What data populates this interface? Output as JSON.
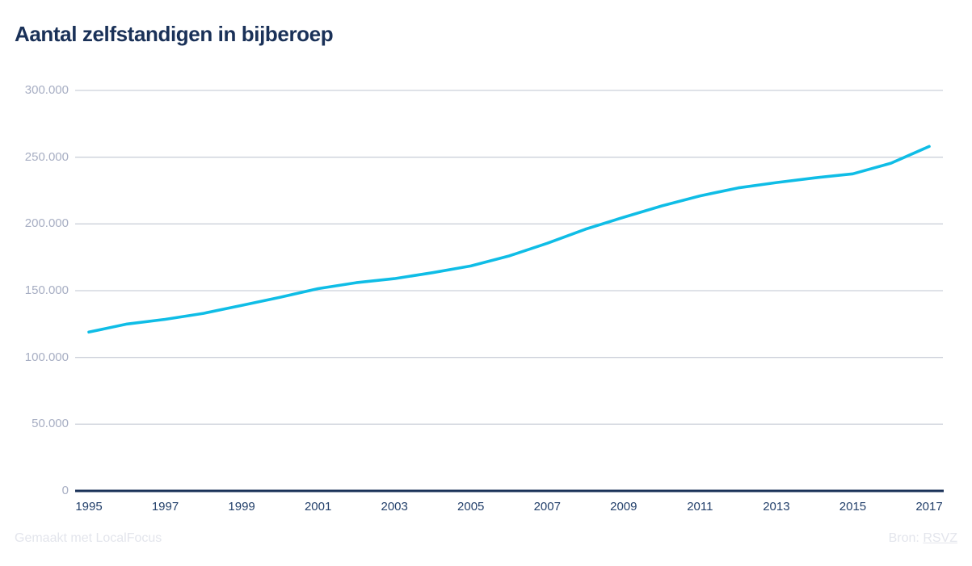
{
  "title": "Aantal zelfstandigen in bijberoep",
  "footer": {
    "credit": "Gemaakt met LocalFocus",
    "source_label": "Bron:",
    "source_link": "RSVZ"
  },
  "colors": {
    "title": "#1a3158",
    "line": "#0fbde6",
    "grid": "#ccd0da",
    "axis_baseline": "#1a3158",
    "y_tick_label": "#a7aec3",
    "x_tick_label": "#23406b",
    "footer_text": "#e3e5ec"
  },
  "chart_data": {
    "type": "line",
    "title": "Aantal zelfstandigen in bijberoep",
    "xlabel": "",
    "ylabel": "",
    "ylim": [
      0,
      300000
    ],
    "xlim": [
      1995,
      2017
    ],
    "grid": "horizontal",
    "legend": "none",
    "x": [
      1995,
      1996,
      1997,
      1998,
      1999,
      2000,
      2001,
      2002,
      2003,
      2004,
      2005,
      2006,
      2007,
      2008,
      2009,
      2010,
      2011,
      2012,
      2013,
      2014,
      2015,
      2016,
      2017
    ],
    "series": [
      {
        "name": "Aantal zelfstandigen in bijberoep",
        "color": "#0fbde6",
        "values": [
          119000,
          125000,
          128500,
          133000,
          139000,
          145000,
          151500,
          156000,
          159000,
          163500,
          168500,
          176000,
          185500,
          196000,
          205000,
          213500,
          221000,
          227000,
          231000,
          234500,
          237500,
          245500,
          258000
        ]
      }
    ],
    "y_ticks": [
      {
        "label": "300.000",
        "value": 300000
      },
      {
        "label": "250.000",
        "value": 250000
      },
      {
        "label": "200.000",
        "value": 200000
      },
      {
        "label": "150.000",
        "value": 150000
      },
      {
        "label": "100.000",
        "value": 100000
      },
      {
        "label": "50.000",
        "value": 50000
      },
      {
        "label": "0",
        "value": 0
      }
    ],
    "x_ticks": [
      {
        "label": "1995",
        "year": 1995
      },
      {
        "label": "1997",
        "year": 1997
      },
      {
        "label": "1999",
        "year": 1999
      },
      {
        "label": "2001",
        "year": 2001
      },
      {
        "label": "2003",
        "year": 2003
      },
      {
        "label": "2005",
        "year": 2005
      },
      {
        "label": "2007",
        "year": 2007
      },
      {
        "label": "2009",
        "year": 2009
      },
      {
        "label": "2011",
        "year": 2011
      },
      {
        "label": "2013",
        "year": 2013
      },
      {
        "label": "2015",
        "year": 2015
      },
      {
        "label": "2017",
        "year": 2017
      }
    ]
  }
}
